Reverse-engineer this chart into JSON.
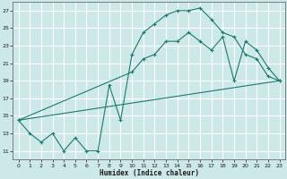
{
  "xlabel": "Humidex (Indice chaleur)",
  "bg_color": "#cde8e8",
  "grid_color": "#ffffff",
  "line_color": "#1a7a6e",
  "xlim": [
    -0.5,
    23.5
  ],
  "ylim": [
    10.0,
    28.0
  ],
  "xticks": [
    0,
    1,
    2,
    3,
    4,
    5,
    6,
    7,
    8,
    9,
    10,
    11,
    12,
    13,
    14,
    15,
    16,
    17,
    18,
    19,
    20,
    21,
    22,
    23
  ],
  "yticks": [
    11,
    13,
    15,
    17,
    19,
    21,
    23,
    25,
    27
  ],
  "line1_x": [
    0,
    1,
    2,
    3,
    4,
    5,
    6,
    7,
    8,
    9,
    10,
    11,
    12,
    13,
    14,
    15,
    16,
    17,
    18,
    19,
    20,
    21,
    22,
    23
  ],
  "line1_y": [
    14.5,
    13.0,
    12.0,
    13.0,
    11.0,
    12.5,
    11.0,
    11.0,
    18.5,
    14.5,
    22.0,
    24.5,
    25.5,
    26.5,
    27.0,
    27.0,
    27.3,
    26.0,
    24.5,
    24.0,
    22.0,
    21.5,
    19.5,
    19.0
  ],
  "line2_x": [
    0,
    10,
    11,
    12,
    13,
    14,
    15,
    16,
    17,
    18,
    19,
    20,
    21,
    22,
    23
  ],
  "line2_y": [
    14.5,
    20.0,
    21.5,
    22.0,
    23.5,
    23.5,
    24.5,
    23.5,
    22.5,
    24.0,
    19.0,
    23.5,
    22.5,
    20.5,
    19.0
  ],
  "line3_x": [
    0,
    23
  ],
  "line3_y": [
    14.5,
    19.0
  ]
}
